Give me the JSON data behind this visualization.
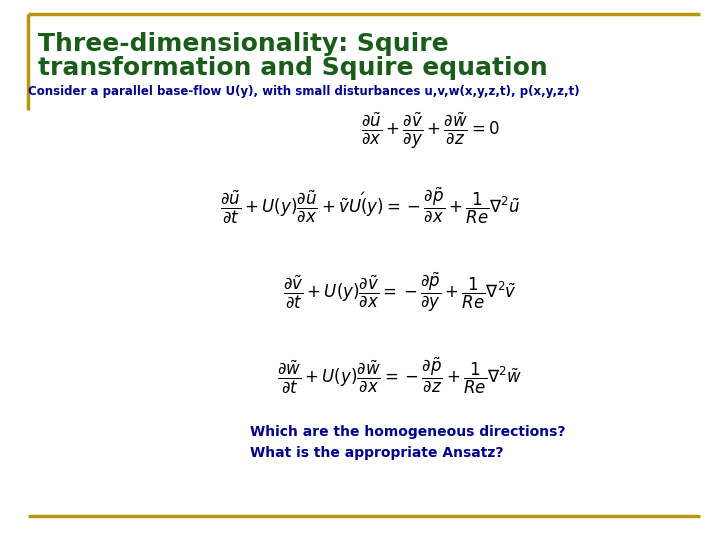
{
  "title_line1": "Three-dimensionality: Squire",
  "title_line2": "transformation and Squire equation",
  "title_color": "#1a5c1a",
  "subtitle": "Consider a parallel base-flow U(y), with small disturbances u,v,w(x,y,z,t), p(x,y,z,t)",
  "subtitle_color": "#00008B",
  "question_line1": "Which are the homogeneous directions?",
  "question_line2": "What is the appropriate Ansatz?",
  "question_color": "#00008B",
  "bg_color": "#ffffff",
  "border_color": "#B8960C",
  "eq_color": "#000000",
  "title_fontsize": 18,
  "subtitle_fontsize": 8.5,
  "eq_fontsize": 12,
  "question_fontsize": 10
}
